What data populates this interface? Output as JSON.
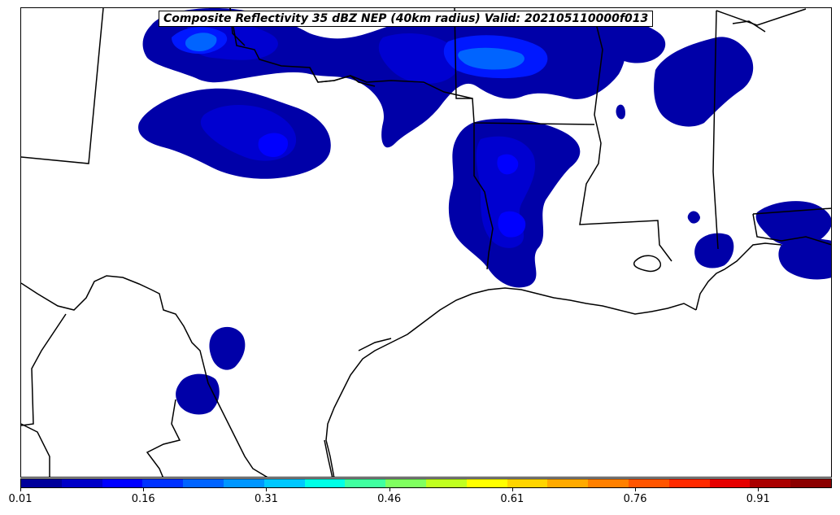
{
  "title": "Composite Reflectivity 35 dBZ NEP (40km radius) Valid: 202105110000f013",
  "colorbar": {
    "tick_labels": [
      "0.01",
      "0.16",
      "0.31",
      "0.46",
      "0.61",
      "0.76",
      "0.91"
    ],
    "colors": [
      "#00009b",
      "#0000c8",
      "#0000ff",
      "#0032ff",
      "#0064ff",
      "#0096ff",
      "#00c8ff",
      "#00ffe6",
      "#40ffa0",
      "#80ff60",
      "#c0ff20",
      "#ffff00",
      "#ffd500",
      "#ffaa00",
      "#ff8000",
      "#ff5500",
      "#ff2a00",
      "#e60000",
      "#aa0000",
      "#8b0000"
    ]
  },
  "chart_data": {
    "type": "map",
    "field": "Composite Reflectivity 35 dBZ NEP (40km radius)",
    "valid": "202105110000f013",
    "colorbar_range": [
      0.01,
      1.0
    ],
    "colorbar_ticks": [
      0.01,
      0.16,
      0.31,
      0.46,
      0.61,
      0.76,
      0.91
    ],
    "probability_palette": [
      "#00009b",
      "#0000c8",
      "#0000ff",
      "#0032ff",
      "#0064ff",
      "#0096ff"
    ]
  }
}
